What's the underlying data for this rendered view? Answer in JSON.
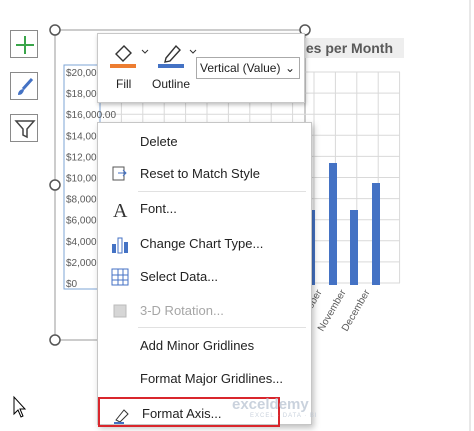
{
  "chart": {
    "title": "les per Month",
    "y_axis_labels": [
      "$20,000",
      "$18,000",
      "$16,000.00",
      "$14,000",
      "$12,000",
      "$10,000",
      "$8,000",
      "$6,000",
      "$4,000",
      "$2,000",
      "$0"
    ],
    "x_axis_labels": [
      "October",
      "November",
      "December"
    ]
  },
  "mini_toolbar": {
    "fill": "Fill",
    "outline": "Outline",
    "element_select": "Vertical (Value)"
  },
  "context_menu": {
    "items": [
      {
        "label": "Delete"
      },
      {
        "label": "Reset to Match Style"
      },
      {
        "label": "Font..."
      },
      {
        "label": "Change Chart Type..."
      },
      {
        "label": "Select Data..."
      },
      {
        "label": "3-D Rotation...",
        "disabled": true
      },
      {
        "label": "Add Minor Gridlines"
      },
      {
        "label": "Format Major Gridlines..."
      },
      {
        "label": "Format Axis...",
        "highlighted": true
      }
    ]
  },
  "watermark": {
    "brand": "exceldemy",
    "tagline": "EXCEL · DATA · BI"
  }
}
